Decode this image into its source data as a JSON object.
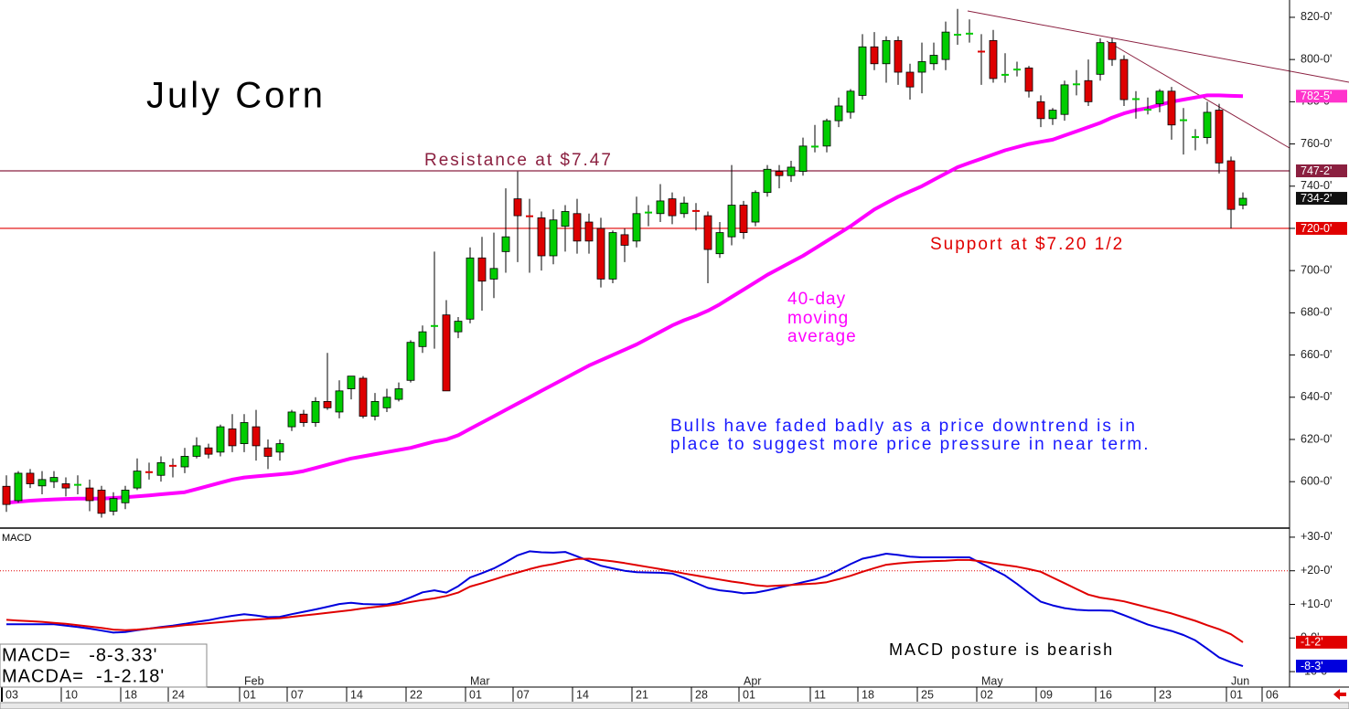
{
  "chart_data": [
    {
      "type": "candlestick",
      "title": "July Corn",
      "categories": [
        "03",
        null,
        null,
        null,
        null,
        "10",
        null,
        null,
        null,
        null,
        "18",
        null,
        null,
        null,
        "24",
        null,
        null,
        null,
        null,
        null,
        "01",
        null,
        null,
        null,
        "07",
        null,
        null,
        null,
        null,
        "14",
        null,
        null,
        null,
        null,
        "22",
        null,
        null,
        null,
        null,
        "01",
        null,
        null,
        null,
        "07",
        null,
        null,
        null,
        null,
        "14",
        null,
        null,
        null,
        null,
        "21",
        null,
        null,
        null,
        null,
        "28",
        null,
        null,
        null,
        "01",
        null,
        null,
        null,
        null,
        null,
        "11",
        null,
        null,
        null,
        "18",
        null,
        null,
        null,
        null,
        "25",
        null,
        null,
        null,
        null,
        "02",
        null,
        null,
        null,
        null,
        "09",
        null,
        null,
        null,
        null,
        "16",
        null,
        null,
        null,
        null,
        "23",
        null,
        null,
        null,
        null,
        null,
        "01",
        null,
        null,
        "06"
      ],
      "months": [
        null,
        null,
        null,
        null,
        null,
        null,
        null,
        null,
        null,
        null,
        null,
        null,
        null,
        null,
        null,
        null,
        null,
        null,
        null,
        null,
        "Feb",
        null,
        null,
        null,
        null,
        null,
        null,
        null,
        null,
        null,
        null,
        null,
        null,
        null,
        null,
        null,
        null,
        null,
        null,
        "Mar",
        null,
        null,
        null,
        null,
        null,
        null,
        null,
        null,
        null,
        null,
        null,
        null,
        null,
        null,
        null,
        null,
        null,
        null,
        null,
        null,
        null,
        null,
        "Apr",
        null,
        null,
        null,
        null,
        null,
        null,
        null,
        null,
        null,
        null,
        null,
        null,
        null,
        null,
        null,
        null,
        null,
        null,
        null,
        "May",
        null,
        null,
        null,
        null,
        null,
        null,
        null,
        null,
        null,
        null,
        null,
        null,
        null,
        null,
        null,
        null,
        null,
        null,
        null,
        null,
        "Jun",
        null,
        null,
        null
      ],
      "open": [
        597.8,
        591,
        604,
        598,
        600,
        599,
        598,
        597,
        596,
        586,
        590,
        597,
        605,
        603,
        608,
        607,
        612,
        616,
        614,
        625,
        618,
        626,
        616,
        614,
        626,
        632,
        628,
        638,
        633,
        644,
        649,
        631,
        635,
        639,
        648,
        664,
        673.5,
        679,
        671,
        677,
        706,
        696,
        709,
        734,
        726,
        725,
        707,
        721,
        727,
        723,
        720,
        696,
        717,
        714,
        727,
        727,
        734,
        727,
        728.5,
        726,
        708,
        716,
        731,
        723,
        737,
        747,
        745,
        747,
        758.5,
        759,
        771,
        775,
        783,
        806,
        798,
        809,
        794,
        794,
        798,
        800,
        811.5,
        812,
        804,
        809,
        792.5,
        795,
        796,
        780,
        772,
        774,
        788,
        790,
        793,
        808,
        800,
        781,
        776,
        779,
        785,
        771,
        763,
        763,
        776,
        752,
        731,
        null,
        null
      ],
      "high": [
        603,
        605,
        606,
        605,
        605,
        602,
        603,
        601,
        598,
        595,
        598,
        611,
        609,
        612,
        611,
        616,
        621,
        618,
        627,
        632,
        632,
        634,
        620,
        620,
        634,
        634,
        640,
        661,
        648,
        650,
        650,
        642,
        644,
        647,
        667,
        674,
        709,
        686,
        678,
        711,
        716,
        718,
        739,
        747,
        734,
        728,
        729,
        731,
        734,
        727,
        725,
        719,
        720,
        735,
        731,
        741,
        737,
        735,
        732,
        728,
        723,
        750,
        733,
        738,
        750,
        750,
        752,
        763,
        769,
        772,
        782,
        786,
        812,
        813,
        811,
        811,
        798,
        808,
        808,
        818,
        824,
        819,
        812,
        814,
        803,
        799,
        797,
        783,
        777,
        790,
        795,
        800,
        810,
        810,
        802,
        785,
        782,
        786,
        787,
        777,
        767,
        780,
        779,
        754,
        737,
        null,
        null
      ],
      "low": [
        585.7,
        590,
        597,
        594,
        597,
        593,
        594,
        586,
        583,
        584,
        587,
        596,
        601,
        600,
        602,
        604,
        611,
        611,
        612,
        614,
        614,
        610,
        606,
        610,
        624,
        626,
        626,
        634,
        630,
        639,
        630,
        629,
        633,
        638,
        647,
        661,
        663,
        643,
        668,
        675,
        681,
        687,
        699,
        704,
        699,
        700,
        703,
        709,
        708,
        708,
        692,
        694,
        704,
        711,
        721,
        723,
        722,
        725,
        719,
        694,
        706,
        712,
        715,
        721,
        735,
        739,
        742,
        745,
        756,
        756,
        768,
        772,
        781,
        795,
        789,
        788,
        781,
        784,
        795,
        795,
        807,
        808,
        788,
        789,
        789,
        792,
        782,
        768,
        769,
        771,
        783,
        778,
        790,
        797,
        778,
        772,
        774,
        775,
        762,
        755,
        757,
        760,
        746,
        720,
        729,
        null,
        null
      ],
      "close": [
        589.2,
        604,
        599,
        601,
        602,
        597,
        599,
        591,
        585,
        592,
        596,
        605,
        604,
        609,
        607,
        612,
        617,
        613,
        626,
        617,
        628,
        617,
        612,
        618,
        633,
        628,
        638,
        635,
        643,
        650,
        631,
        638,
        640,
        644,
        666,
        671,
        674,
        643,
        676,
        706,
        695,
        701,
        716,
        726,
        725.5,
        707,
        724,
        728,
        714,
        714,
        696,
        718,
        712,
        727,
        728,
        733,
        726,
        732,
        728,
        710,
        718,
        731,
        718,
        737,
        748,
        745,
        749,
        759,
        759,
        771,
        778,
        785,
        806,
        798,
        809,
        794,
        787,
        799,
        802,
        813,
        812,
        812.5,
        803.5,
        791,
        793,
        795.5,
        785,
        772,
        776,
        788,
        788.5,
        780,
        808,
        800,
        781,
        781.5,
        776.5,
        785,
        769,
        771.5,
        763.5,
        775,
        751,
        729,
        734.25,
        null,
        null
      ],
      "up_color": "#00cc00",
      "down_color": "#dd0000",
      "moving_average": {
        "color": "#ff00ff",
        "values": [
          590,
          590.5,
          591,
          591.3,
          591.6,
          591.8,
          592,
          592,
          592,
          592.3,
          592.6,
          593,
          593.5,
          594,
          594.5,
          595,
          596.5,
          598,
          599.5,
          601,
          602,
          602.5,
          603,
          603.5,
          604,
          605,
          606.5,
          608,
          609.5,
          611,
          612,
          613,
          614,
          615,
          616,
          617.5,
          619,
          620,
          622,
          625,
          628,
          631,
          634,
          637,
          640,
          643,
          646,
          649,
          652,
          655,
          657.5,
          660,
          662.5,
          665,
          668,
          671,
          674,
          676.5,
          678.5,
          681,
          684,
          687.5,
          691,
          694.5,
          698,
          701,
          704,
          707,
          710.5,
          714,
          717.5,
          721,
          725,
          729,
          732,
          735,
          737.5,
          740,
          743,
          746,
          749,
          751,
          753,
          755,
          757,
          758.5,
          760,
          761,
          762,
          764,
          766,
          768,
          770,
          772.5,
          774.5,
          776,
          777,
          778.5,
          780,
          781,
          782,
          783,
          783,
          782.8,
          782.625,
          null,
          null
        ]
      },
      "ylim": [
        578,
        828.2
      ],
      "yticks": [
        {
          "value": 600,
          "label": "600-0'"
        },
        {
          "value": 620,
          "label": "620-0'"
        },
        {
          "value": 640,
          "label": "640-0'"
        },
        {
          "value": 660,
          "label": "660-0'"
        },
        {
          "value": 680,
          "label": "680-0'"
        },
        {
          "value": 700,
          "label": "700-0'"
        },
        {
          "value": 720,
          "label": "720-0'"
        },
        {
          "value": 740,
          "label": "740-0'"
        },
        {
          "value": 760,
          "label": "760-0'"
        },
        {
          "value": 780,
          "label": "780-0'"
        },
        {
          "value": 800,
          "label": "800-0'"
        },
        {
          "value": 820,
          "label": "820-0'"
        }
      ],
      "price_tags": [
        {
          "value": 782.625,
          "label": "782-5'",
          "color": "#ff33cc"
        },
        {
          "value": 747.25,
          "label": "747-2'",
          "color": "#8b2040",
          "line": true
        },
        {
          "value": 734.25,
          "label": "734-2'",
          "color": "#111111"
        },
        {
          "value": 720,
          "label": "720-0'",
          "color": "#e00000",
          "line": true
        }
      ],
      "resistance_label": "Resistance at $7.47",
      "support_label": "Support at $7.20 1/2",
      "ma_label": [
        "40-day",
        "moving",
        "average"
      ],
      "note": [
        "Bulls have faded badly as a price downtrend is in",
        "place to suggest more price pressure in near term."
      ]
    },
    {
      "type": "line",
      "title": "MACD",
      "series": [
        {
          "color": "#0000dd",
          "values": [
            4.1,
            4.1,
            4.1,
            4.1,
            4.1,
            3.7,
            3.3,
            2.8,
            2.2,
            1.6,
            1.8,
            2.3,
            2.8,
            3.3,
            3.7,
            4.2,
            4.8,
            5.3,
            6,
            6.6,
            7.1,
            6.7,
            6.2,
            6.3,
            7.1,
            7.8,
            8.5,
            9.3,
            10.1,
            10.5,
            10.1,
            10,
            10,
            10.7,
            12.1,
            13.6,
            14.2,
            13.5,
            15.4,
            18,
            19.3,
            20.7,
            22.6,
            24.6,
            25.8,
            25.5,
            25.4,
            25.6,
            24.3,
            22.9,
            21.5,
            20.7,
            20,
            19.6,
            19.5,
            19.4,
            19.2,
            17.9,
            16.4,
            14.9,
            14.2,
            13.8,
            13.3,
            13.5,
            14.2,
            15,
            15.8,
            16.6,
            17.4,
            18.5,
            20.2,
            22,
            23.6,
            24.3,
            25.1,
            24.7,
            24.2,
            24,
            24,
            24,
            24,
            24,
            22.2,
            20.4,
            18.6,
            16.1,
            13.4,
            10.8,
            9.7,
            8.9,
            8.4,
            8.2,
            8.2,
            8.1,
            6.8,
            5.4,
            4,
            3,
            2.1,
            0.9,
            -0.7,
            -3.2,
            -5.8,
            -7.2,
            -8.375,
            null,
            null
          ]
        },
        {
          "color": "#e00000",
          "values": [
            5.4,
            5.2,
            5,
            4.8,
            4.5,
            4.2,
            3.8,
            3.4,
            3,
            2.5,
            2.3,
            2.5,
            2.8,
            3.1,
            3.4,
            3.8,
            4.1,
            4.4,
            4.7,
            5,
            5.3,
            5.5,
            5.7,
            5.9,
            6.3,
            6.7,
            7.1,
            7.5,
            7.9,
            8.3,
            8.8,
            9.2,
            9.6,
            10.1,
            10.7,
            11.3,
            11.8,
            12.5,
            13.5,
            15.3,
            16.3,
            17.4,
            18.5,
            19.5,
            20.5,
            21.4,
            22,
            22.8,
            23.5,
            23.6,
            23.2,
            22.8,
            22.3,
            21.7,
            21.1,
            20.5,
            19.9,
            19.2,
            18.6,
            18,
            17.4,
            16.8,
            16.3,
            15.7,
            15.4,
            15.6,
            15.8,
            16,
            16.2,
            16.6,
            17.5,
            18.5,
            19.7,
            20.8,
            21.8,
            22.2,
            22.5,
            22.7,
            22.9,
            23,
            23.2,
            23.2,
            22.8,
            22.2,
            21.7,
            21.2,
            20.5,
            19.7,
            18,
            16.3,
            14.6,
            12.9,
            12,
            11.5,
            10.9,
            10,
            9.1,
            8.2,
            7.3,
            6.2,
            5.1,
            3.8,
            2.6,
            1.1,
            -1.25,
            null,
            null
          ]
        }
      ],
      "ylim": [
        -14.6,
        32.7
      ],
      "yticks": [
        {
          "value": -10,
          "label": "-10-0'"
        },
        {
          "value": 0,
          "label": "0-0'"
        },
        {
          "value": 10,
          "label": "+10-0'"
        },
        {
          "value": 20,
          "label": "+20-0'"
        },
        {
          "value": 30,
          "label": "+30-0'"
        }
      ],
      "ref_line": {
        "value": 20,
        "color": "#e00000"
      },
      "price_tags": [
        {
          "value": -1.25,
          "label": "-1-2'",
          "color": "#e00000"
        },
        {
          "value": -8.375,
          "label": "-8-3'",
          "color": "#0000dd"
        }
      ],
      "readout": [
        "MACD=   -8-3.33'",
        "MACDA=  -1-2.18'"
      ],
      "annotation": "MACD posture is bearish"
    }
  ]
}
